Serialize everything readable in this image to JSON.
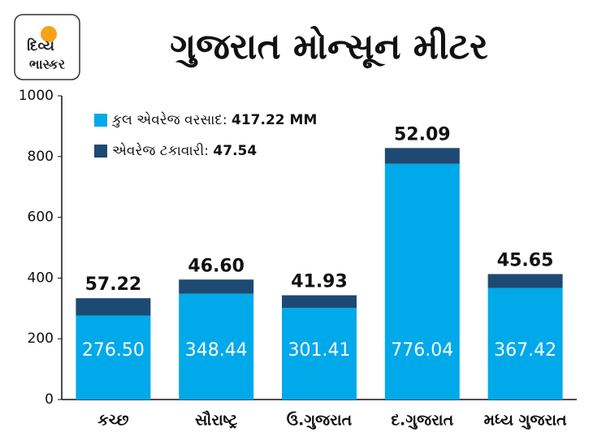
{
  "logo": {
    "line1": "દિવ્ય",
    "line2": "ભાસ્કર"
  },
  "chart_data": {
    "type": "stacked_bar",
    "title": "ગુજરાત મોન્સૂન મીટર",
    "categories": [
      "કચ્છ",
      "સૌરાષ્ટ્ર",
      "ઉ.ગુજરાત",
      "દ.ગુજરાત",
      "મધ્ય ગુજરાત"
    ],
    "series": [
      {
        "name": "કુલ એવરેજ વરસાદ:",
        "total_label": "417.22 MM",
        "color": "#00a9ea",
        "values": [
          276.5,
          348.44,
          301.41,
          776.04,
          367.42
        ],
        "value_labels": [
          "276.50",
          "348.44",
          "301.41",
          "776.04",
          "367.42"
        ]
      },
      {
        "name": "એવરેજ ટકાવારી:",
        "total_label": "47.54",
        "color": "#1d4a73",
        "values": [
          57.22,
          46.6,
          41.93,
          52.09,
          45.65
        ],
        "value_labels": [
          "57.22",
          "46.60",
          "41.93",
          "52.09",
          "45.65"
        ]
      }
    ],
    "ylim": [
      0,
      1000
    ],
    "yticks": [
      0,
      200,
      400,
      600,
      800,
      1000
    ],
    "grid": false
  }
}
